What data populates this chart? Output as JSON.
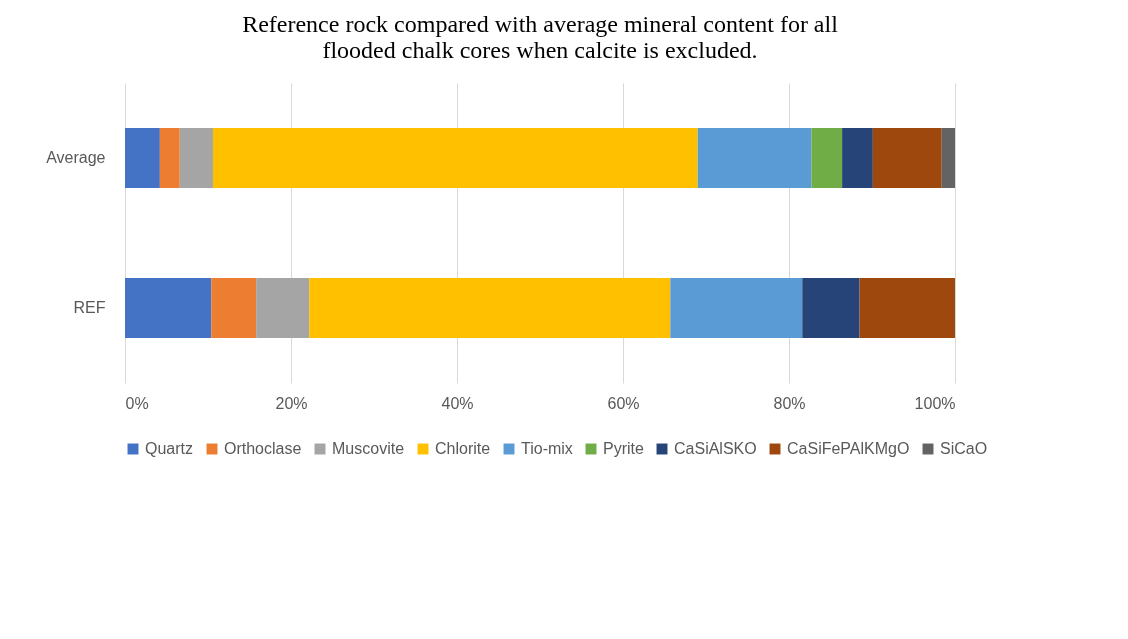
{
  "chart_data": {
    "type": "bar",
    "orientation": "horizontal",
    "stacked": true,
    "title": "Reference  rock compared with average mineral content for all flooded chalk cores when calcite is excluded.",
    "categories": [
      "Average",
      "REF"
    ],
    "series": [
      {
        "name": "Quartz",
        "color": "#4472c4",
        "values": [
          4.2,
          10.4
        ]
      },
      {
        "name": "Orthoclase",
        "color": "#ed7d31",
        "values": [
          2.4,
          5.4
        ]
      },
      {
        "name": "Muscovite",
        "color": "#a5a5a5",
        "values": [
          4.0,
          6.4
        ]
      },
      {
        "name": "Chlorite",
        "color": "#ffc000",
        "values": [
          58.4,
          43.5
        ]
      },
      {
        "name": "Tio-mix",
        "color": "#5b9bd5",
        "values": [
          13.7,
          15.9
        ]
      },
      {
        "name": "Pyrite",
        "color": "#70ad47",
        "values": [
          3.7,
          0
        ]
      },
      {
        "name": "CaSiAlSKO",
        "color": "#264478",
        "values": [
          3.7,
          6.9
        ]
      },
      {
        "name": "CaSiFePAlKMgO",
        "color": "#9e480e",
        "values": [
          8.3,
          11.5
        ]
      },
      {
        "name": "SiCaO",
        "color": "#636363",
        "values": [
          1.6,
          0
        ]
      }
    ],
    "xlim": [
      0,
      100
    ],
    "xticks": [
      {
        "value": 0,
        "label": "0%"
      },
      {
        "value": 20,
        "label": "20%"
      },
      {
        "value": 40,
        "label": "40%"
      },
      {
        "value": 60,
        "label": "60%"
      },
      {
        "value": 80,
        "label": "80%"
      },
      {
        "value": 100,
        "label": "100%"
      }
    ],
    "grid": "x",
    "legend": "bottom"
  }
}
